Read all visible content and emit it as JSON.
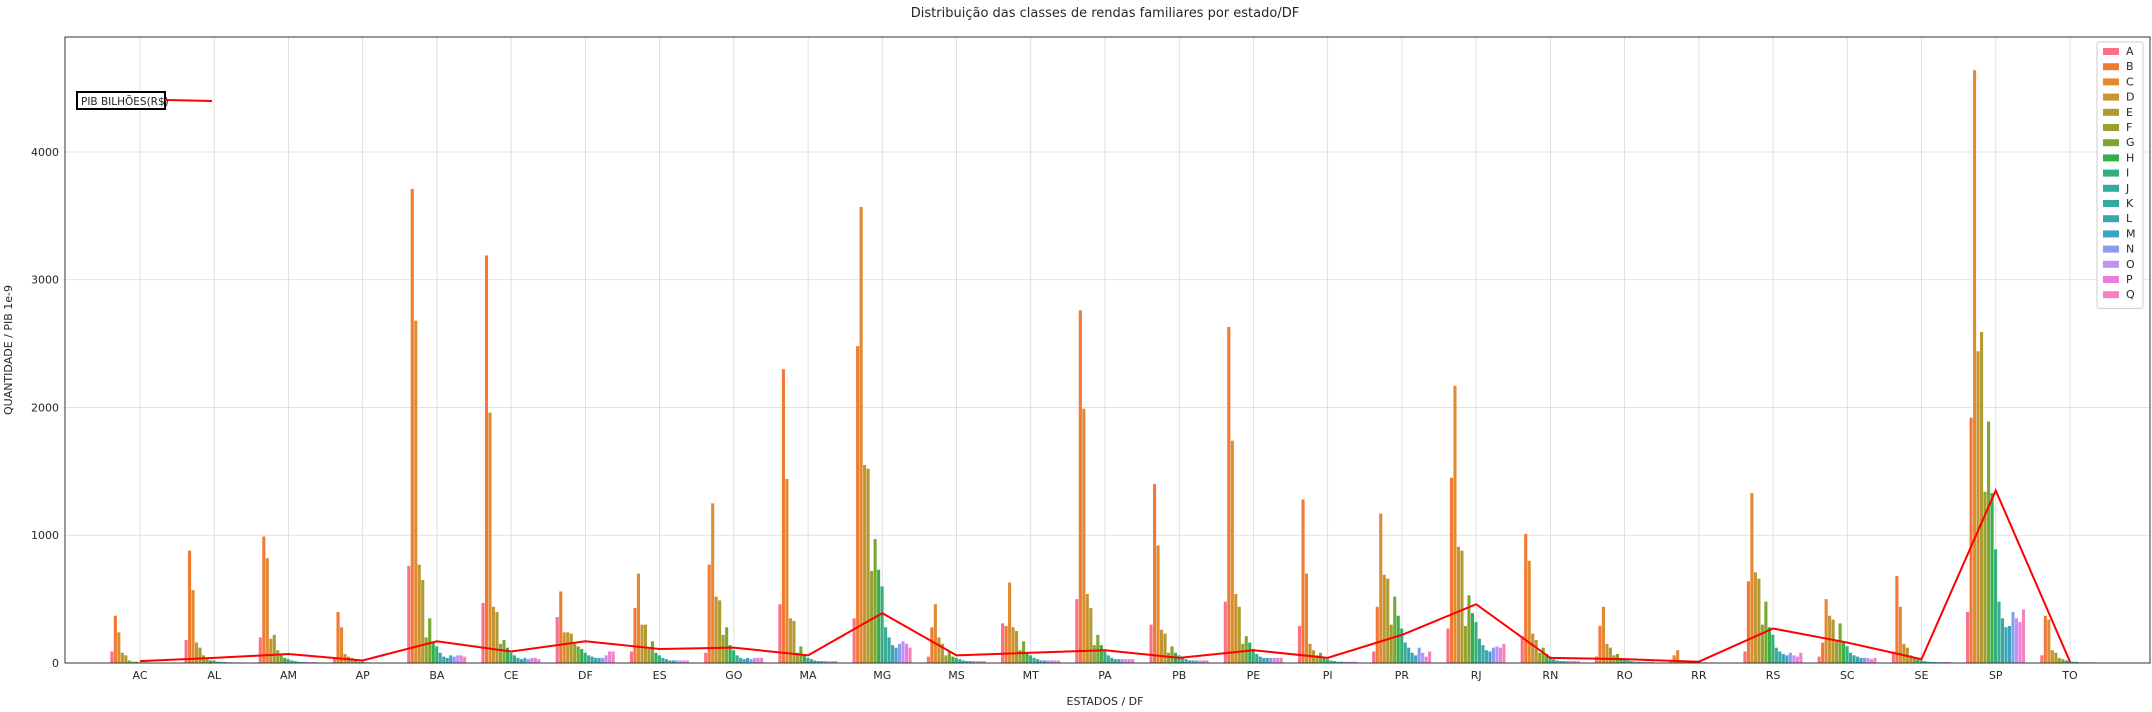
{
  "chart_data": {
    "type": "bar",
    "title": "Distribuição das classes de rendas familiares por estado/DF",
    "xlabel": "ESTADOS / DF",
    "ylabel": "QUANTIDADE / PIB  1e-9",
    "ylim": [
      0,
      4900
    ],
    "yticks": [
      0,
      1000,
      2000,
      3000,
      4000
    ],
    "grid": true,
    "legend_position": "top-right",
    "annotation": "PIB BILHÕES(R$)",
    "categories": [
      "AC",
      "AL",
      "AM",
      "AP",
      "BA",
      "CE",
      "DF",
      "ES",
      "GO",
      "MA",
      "MG",
      "MS",
      "MT",
      "PA",
      "PB",
      "PE",
      "PI",
      "PR",
      "RJ",
      "RN",
      "RO",
      "RR",
      "RS",
      "SC",
      "SE",
      "SP",
      "TO"
    ],
    "series": [
      {
        "name": "A",
        "color": "#f77189",
        "values": [
          90,
          180,
          200,
          40,
          760,
          470,
          360,
          90,
          80,
          460,
          350,
          50,
          310,
          500,
          300,
          480,
          290,
          90,
          270,
          210,
          50,
          10,
          90,
          50,
          80,
          400,
          60
        ]
      },
      {
        "name": "B",
        "color": "#f37932",
        "values": [
          370,
          880,
          990,
          400,
          3710,
          3190,
          560,
          430,
          770,
          2300,
          2480,
          280,
          290,
          2760,
          1400,
          2630,
          1280,
          440,
          1450,
          1010,
          290,
          60,
          640,
          160,
          680,
          1920,
          370
        ]
      },
      {
        "name": "C",
        "color": "#e08a32",
        "values": [
          240,
          570,
          820,
          280,
          2680,
          1960,
          240,
          700,
          1250,
          1440,
          3570,
          460,
          630,
          1990,
          920,
          1740,
          700,
          1170,
          2170,
          800,
          440,
          100,
          1330,
          500,
          440,
          4640,
          340
        ]
      },
      {
        "name": "D",
        "color": "#c69432",
        "values": [
          80,
          160,
          190,
          70,
          770,
          440,
          240,
          300,
          520,
          350,
          1550,
          200,
          280,
          540,
          260,
          540,
          150,
          690,
          910,
          230,
          150,
          20,
          710,
          370,
          150,
          2440,
          100
        ]
      },
      {
        "name": "E",
        "color": "#af9b31",
        "values": [
          60,
          120,
          220,
          50,
          650,
          400,
          230,
          300,
          490,
          330,
          1520,
          150,
          250,
          430,
          230,
          440,
          100,
          660,
          880,
          180,
          120,
          20,
          660,
          340,
          120,
          2590,
          80
        ]
      },
      {
        "name": "F",
        "color": "#9aa031",
        "values": [
          20,
          60,
          100,
          40,
          200,
          150,
          150,
          110,
          220,
          80,
          720,
          60,
          100,
          140,
          80,
          150,
          60,
          300,
          290,
          80,
          60,
          10,
          300,
          170,
          60,
          1340,
          40
        ]
      },
      {
        "name": "G",
        "color": "#78a831",
        "values": [
          10,
          30,
          60,
          20,
          350,
          180,
          130,
          170,
          280,
          130,
          970,
          90,
          170,
          220,
          130,
          210,
          80,
          520,
          530,
          120,
          70,
          10,
          480,
          310,
          40,
          1890,
          30
        ]
      },
      {
        "name": "H",
        "color": "#33b04a",
        "values": [
          10,
          20,
          40,
          10,
          160,
          120,
          110,
          80,
          140,
          70,
          730,
          50,
          80,
          140,
          80,
          160,
          40,
          370,
          390,
          70,
          40,
          5,
          280,
          160,
          30,
          1330,
          20
        ]
      },
      {
        "name": "I",
        "color": "#35ad7d",
        "values": [
          5,
          20,
          30,
          10,
          130,
          80,
          80,
          60,
          100,
          40,
          600,
          40,
          60,
          90,
          60,
          110,
          30,
          270,
          320,
          50,
          30,
          5,
          220,
          130,
          20,
          890,
          15
        ]
      },
      {
        "name": "J",
        "color": "#36ab96",
        "values": [
          5,
          10,
          20,
          5,
          80,
          60,
          60,
          40,
          60,
          30,
          280,
          30,
          40,
          60,
          40,
          70,
          20,
          160,
          190,
          30,
          20,
          5,
          120,
          80,
          15,
          480,
          10
        ]
      },
      {
        "name": "K",
        "color": "#37a8a4",
        "values": [
          5,
          10,
          15,
          5,
          50,
          40,
          50,
          30,
          40,
          20,
          200,
          20,
          30,
          40,
          30,
          50,
          15,
          120,
          140,
          20,
          15,
          5,
          90,
          60,
          10,
          350,
          10
        ]
      },
      {
        "name": "L",
        "color": "#39a6b2",
        "values": [
          3,
          8,
          10,
          3,
          40,
          30,
          40,
          20,
          30,
          15,
          140,
          15,
          20,
          30,
          20,
          40,
          10,
          80,
          100,
          15,
          10,
          3,
          70,
          50,
          8,
          280,
          5
        ]
      },
      {
        "name": "M",
        "color": "#3ba3c5",
        "values": [
          3,
          6,
          8,
          3,
          60,
          40,
          40,
          20,
          40,
          15,
          120,
          15,
          20,
          30,
          20,
          40,
          10,
          60,
          90,
          15,
          10,
          3,
          60,
          40,
          8,
          290,
          5
        ]
      },
      {
        "name": "N",
        "color": "#8b9bf0",
        "values": [
          3,
          6,
          8,
          3,
          50,
          30,
          40,
          20,
          30,
          15,
          150,
          15,
          20,
          30,
          20,
          40,
          10,
          120,
          120,
          15,
          10,
          3,
          80,
          40,
          8,
          400,
          5
        ]
      },
      {
        "name": "O",
        "color": "#c291f3",
        "values": [
          3,
          5,
          7,
          3,
          60,
          40,
          60,
          20,
          40,
          15,
          170,
          15,
          20,
          30,
          20,
          40,
          10,
          80,
          130,
          15,
          10,
          3,
          60,
          40,
          8,
          350,
          5
        ]
      },
      {
        "name": "P",
        "color": "#ea7fdb",
        "values": [
          3,
          5,
          7,
          3,
          60,
          40,
          90,
          20,
          40,
          15,
          150,
          15,
          20,
          30,
          20,
          40,
          10,
          50,
          120,
          15,
          10,
          3,
          50,
          30,
          8,
          320,
          5
        ]
      },
      {
        "name": "Q",
        "color": "#f582bc",
        "values": [
          3,
          5,
          7,
          3,
          50,
          30,
          90,
          20,
          40,
          15,
          120,
          15,
          20,
          30,
          20,
          40,
          10,
          90,
          150,
          15,
          10,
          3,
          80,
          40,
          8,
          420,
          5
        ]
      }
    ],
    "line_series": {
      "name": "PIB BILHÕES(R$)",
      "color": "#ff0000",
      "values": [
        15,
        40,
        70,
        20,
        170,
        90,
        170,
        110,
        120,
        60,
        390,
        60,
        80,
        100,
        40,
        100,
        40,
        220,
        460,
        40,
        30,
        10,
        270,
        160,
        30,
        1350,
        10
      ]
    }
  }
}
